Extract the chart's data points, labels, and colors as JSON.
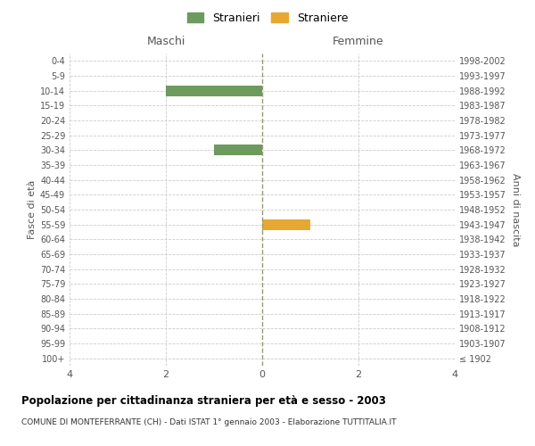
{
  "age_groups": [
    "100+",
    "95-99",
    "90-94",
    "85-89",
    "80-84",
    "75-79",
    "70-74",
    "65-69",
    "60-64",
    "55-59",
    "50-54",
    "45-49",
    "40-44",
    "35-39",
    "30-34",
    "25-29",
    "20-24",
    "15-19",
    "10-14",
    "5-9",
    "0-4"
  ],
  "birth_years": [
    "≤ 1902",
    "1903-1907",
    "1908-1912",
    "1913-1917",
    "1918-1922",
    "1923-1927",
    "1928-1932",
    "1933-1937",
    "1938-1942",
    "1943-1947",
    "1948-1952",
    "1953-1957",
    "1958-1962",
    "1963-1967",
    "1968-1972",
    "1973-1977",
    "1978-1982",
    "1983-1987",
    "1988-1992",
    "1993-1997",
    "1998-2002"
  ],
  "males": [
    0,
    0,
    0,
    0,
    0,
    0,
    0,
    0,
    0,
    0,
    0,
    0,
    0,
    0,
    1,
    0,
    0,
    0,
    2,
    0,
    0
  ],
  "females": [
    0,
    0,
    0,
    0,
    0,
    0,
    0,
    0,
    0,
    1,
    0,
    0,
    0,
    0,
    0,
    0,
    0,
    0,
    0,
    0,
    0
  ],
  "male_color": "#6d9a5e",
  "female_color": "#e6a830",
  "xlim": 4,
  "xlabel_left": "Maschi",
  "xlabel_right": "Femmine",
  "ylabel_left": "Fasce di età",
  "ylabel_right": "Anni di nascita",
  "title": "Popolazione per cittadinanza straniera per età e sesso - 2003",
  "subtitle": "COMUNE DI MONTEFERRANTE (CH) - Dati ISTAT 1° gennaio 2003 - Elaborazione TUTTITALIA.IT",
  "legend_male": "Stranieri",
  "legend_female": "Straniere",
  "bg_color": "#ffffff",
  "grid_color": "#cccccc",
  "center_line_color": "#999977"
}
